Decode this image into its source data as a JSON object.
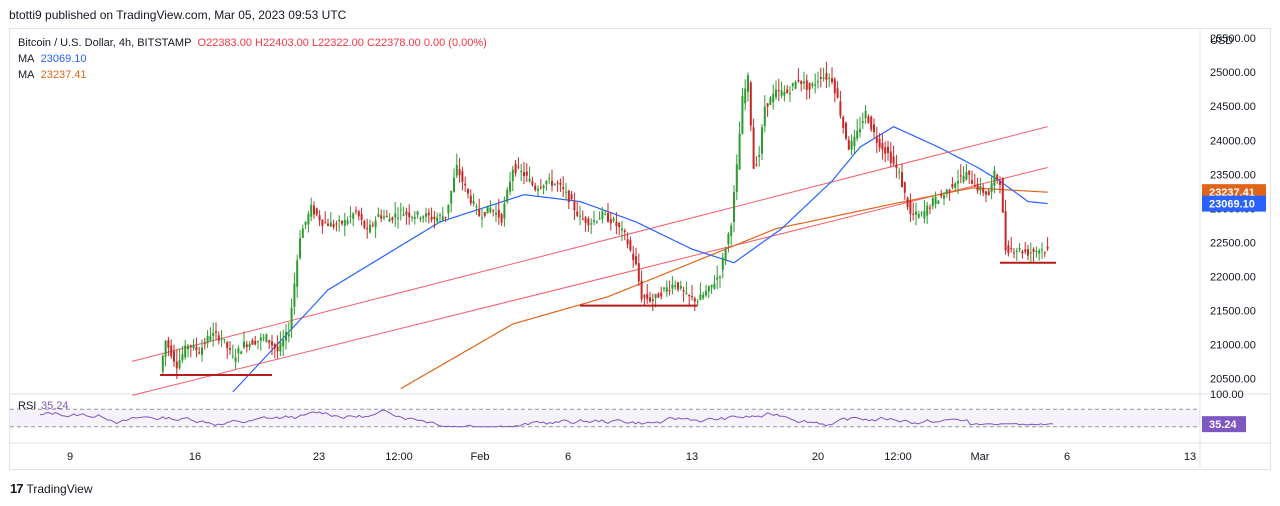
{
  "header": {
    "published": "btotti9 published on TradingView.com, Mar 05, 2023 09:53 UTC"
  },
  "legend": {
    "symbol": "Bitcoin / U.S. Dollar, 4h, BITSTAMP",
    "ohlc": "O22383.00  H22403.00  L22322.00  C22378.00  0.00 (0.00%)",
    "ma1_label": "MA",
    "ma1_value": "23069.10",
    "ma2_label": "MA",
    "ma2_value": "23237.41"
  },
  "footer": {
    "logo_text": "TradingView"
  },
  "colors": {
    "up": "#26a69a",
    "down": "#c62828",
    "up_wick": "#2e9b30",
    "ma1": "#2962ff",
    "ma2": "#e0651a",
    "channel": "#f23645",
    "level": "#b71c1c",
    "rsi": "#7e57c2"
  },
  "chart_data": {
    "type": "candlestick",
    "currency_label": "USD",
    "y_ticks": [
      "25500.00",
      "25000.00",
      "24500.00",
      "24000.00",
      "23500.00",
      "23000.00",
      "22500.00",
      "22000.00",
      "21500.00",
      "21000.00",
      "20500.00"
    ],
    "y_range": [
      20300,
      25650
    ],
    "x_ticks": [
      "9",
      "16",
      "23",
      "12:00",
      "Feb",
      "6",
      "13",
      "20",
      "12:00",
      "Mar",
      "6",
      "13"
    ],
    "price_labels": {
      "ma2": "23237.41",
      "ma1": "23069.10"
    },
    "close_path": [
      [
        0,
        20600
      ],
      [
        2,
        21050
      ],
      [
        6,
        20700
      ],
      [
        10,
        21000
      ],
      [
        14,
        20900
      ],
      [
        18,
        21150
      ],
      [
        22,
        21100
      ],
      [
        26,
        20800
      ],
      [
        30,
        21000
      ],
      [
        34,
        21050
      ],
      [
        38,
        21100
      ],
      [
        42,
        20900
      ],
      [
        46,
        21200
      ],
      [
        50,
        22600
      ],
      [
        54,
        23000
      ],
      [
        58,
        22800
      ],
      [
        62,
        22750
      ],
      [
        66,
        22800
      ],
      [
        70,
        22950
      ],
      [
        74,
        22650
      ],
      [
        78,
        22900
      ],
      [
        82,
        22850
      ],
      [
        86,
        22950
      ],
      [
        90,
        22900
      ],
      [
        94,
        22900
      ],
      [
        98,
        22850
      ],
      [
        102,
        22900
      ],
      [
        106,
        23600
      ],
      [
        110,
        23200
      ],
      [
        114,
        22900
      ],
      [
        118,
        23000
      ],
      [
        122,
        22850
      ],
      [
        126,
        23600
      ],
      [
        130,
        23500
      ],
      [
        134,
        23300
      ],
      [
        138,
        23400
      ],
      [
        142,
        23350
      ],
      [
        146,
        23150
      ],
      [
        150,
        22850
      ],
      [
        154,
        22800
      ],
      [
        158,
        22900
      ],
      [
        162,
        22800
      ],
      [
        166,
        22600
      ],
      [
        170,
        22150
      ],
      [
        172,
        21700
      ],
      [
        176,
        21650
      ],
      [
        180,
        21800
      ],
      [
        184,
        21900
      ],
      [
        188,
        21700
      ],
      [
        192,
        21650
      ],
      [
        196,
        21800
      ],
      [
        200,
        22050
      ],
      [
        204,
        22800
      ],
      [
        206,
        23600
      ],
      [
        208,
        24600
      ],
      [
        210,
        24900
      ],
      [
        212,
        23600
      ],
      [
        214,
        23800
      ],
      [
        216,
        24500
      ],
      [
        220,
        24700
      ],
      [
        224,
        24700
      ],
      [
        228,
        24900
      ],
      [
        232,
        24750
      ],
      [
        236,
        24950
      ],
      [
        240,
        24900
      ],
      [
        242,
        24600
      ],
      [
        244,
        24200
      ],
      [
        246,
        23900
      ],
      [
        248,
        24000
      ],
      [
        252,
        24400
      ],
      [
        256,
        24000
      ],
      [
        260,
        23800
      ],
      [
        264,
        23500
      ],
      [
        268,
        22900
      ],
      [
        272,
        22900
      ],
      [
        276,
        23100
      ],
      [
        280,
        23200
      ],
      [
        284,
        23400
      ],
      [
        288,
        23500
      ],
      [
        292,
        23300
      ],
      [
        296,
        23200
      ],
      [
        298,
        23500
      ],
      [
        300,
        23400
      ],
      [
        302,
        22400
      ],
      [
        306,
        22400
      ],
      [
        310,
        22350
      ],
      [
        314,
        22400
      ],
      [
        317,
        22380
      ]
    ],
    "ma1": [
      [
        0,
        19000
      ],
      [
        26,
        20300
      ],
      [
        60,
        21800
      ],
      [
        100,
        22800
      ],
      [
        130,
        23200
      ],
      [
        150,
        23100
      ],
      [
        170,
        22800
      ],
      [
        190,
        22400
      ],
      [
        205,
        22200
      ],
      [
        222,
        22700
      ],
      [
        240,
        23400
      ],
      [
        250,
        23900
      ],
      [
        262,
        24200
      ],
      [
        278,
        23900
      ],
      [
        292,
        23600
      ],
      [
        300,
        23400
      ],
      [
        310,
        23100
      ],
      [
        317,
        23069.1
      ]
    ],
    "ma2": [
      [
        86,
        20350
      ],
      [
        126,
        21300
      ],
      [
        160,
        21700
      ],
      [
        190,
        22200
      ],
      [
        220,
        22700
      ],
      [
        260,
        23050
      ],
      [
        290,
        23300
      ],
      [
        317,
        23237.41
      ]
    ],
    "channel_upper": [
      [
        -10,
        20750
      ],
      [
        317,
        24200
      ]
    ],
    "channel_lower": [
      [
        -10,
        20250
      ],
      [
        317,
        23600
      ]
    ],
    "support_levels": [
      {
        "from": 0,
        "to": 40,
        "price": 20550
      },
      {
        "from": 150,
        "to": 192,
        "price": 21570
      },
      {
        "from": 300,
        "to": 320,
        "price": 22200
      }
    ],
    "rsi": {
      "label": "RSI",
      "value": "35.24",
      "level": "100.00",
      "upper_band": 70,
      "lower_band": 30
    }
  }
}
